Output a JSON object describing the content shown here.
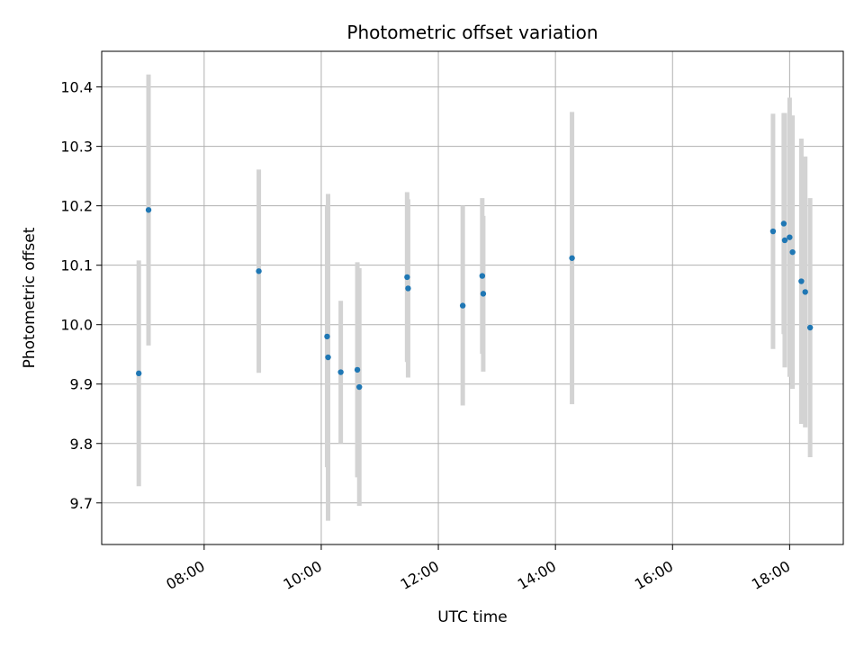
{
  "chart_data": {
    "type": "scatter",
    "title": "Photometric offset variation",
    "xlabel": "UTC time",
    "ylabel": "Photometric offset",
    "xlim": [
      "06:15",
      "18:55"
    ],
    "ylim": [
      9.63,
      10.46
    ],
    "x_ticks": [
      "08:00",
      "10:00",
      "12:00",
      "14:00",
      "16:00",
      "18:00"
    ],
    "y_ticks": [
      "9.7",
      "9.8",
      "9.9",
      "10.0",
      "10.1",
      "10.2",
      "10.3",
      "10.4"
    ],
    "grid": true,
    "point_color": "#1f77b4",
    "errorbar_color": "#d3d3d3",
    "points": [
      {
        "x": "06:53",
        "y": 9.918,
        "err": 0.19
      },
      {
        "x": "07:03",
        "y": 10.193,
        "err": 0.228
      },
      {
        "x": "08:56",
        "y": 10.09,
        "err": 0.171
      },
      {
        "x": "10:06",
        "y": 9.98,
        "err": 0.22
      },
      {
        "x": "10:07",
        "y": 9.945,
        "err": 0.275
      },
      {
        "x": "10:20",
        "y": 9.92,
        "err": 0.12
      },
      {
        "x": "10:37",
        "y": 9.924,
        "err": 0.181
      },
      {
        "x": "10:39",
        "y": 9.895,
        "err": 0.2
      },
      {
        "x": "11:28",
        "y": 10.08,
        "err": 0.143
      },
      {
        "x": "11:29",
        "y": 10.061,
        "err": 0.15
      },
      {
        "x": "12:25",
        "y": 10.032,
        "err": 0.168
      },
      {
        "x": "12:45",
        "y": 10.082,
        "err": 0.131
      },
      {
        "x": "12:46",
        "y": 10.052,
        "err": 0.131
      },
      {
        "x": "14:17",
        "y": 10.112,
        "err": 0.246
      },
      {
        "x": "17:43",
        "y": 10.157,
        "err": 0.198
      },
      {
        "x": "17:54",
        "y": 10.17,
        "err": 0.186
      },
      {
        "x": "17:55",
        "y": 10.142,
        "err": 0.214
      },
      {
        "x": "18:00",
        "y": 10.147,
        "err": 0.235
      },
      {
        "x": "18:03",
        "y": 10.122,
        "err": 0.23
      },
      {
        "x": "18:12",
        "y": 10.073,
        "err": 0.24
      },
      {
        "x": "18:16",
        "y": 10.055,
        "err": 0.228
      },
      {
        "x": "18:21",
        "y": 9.995,
        "err": 0.218
      }
    ]
  }
}
